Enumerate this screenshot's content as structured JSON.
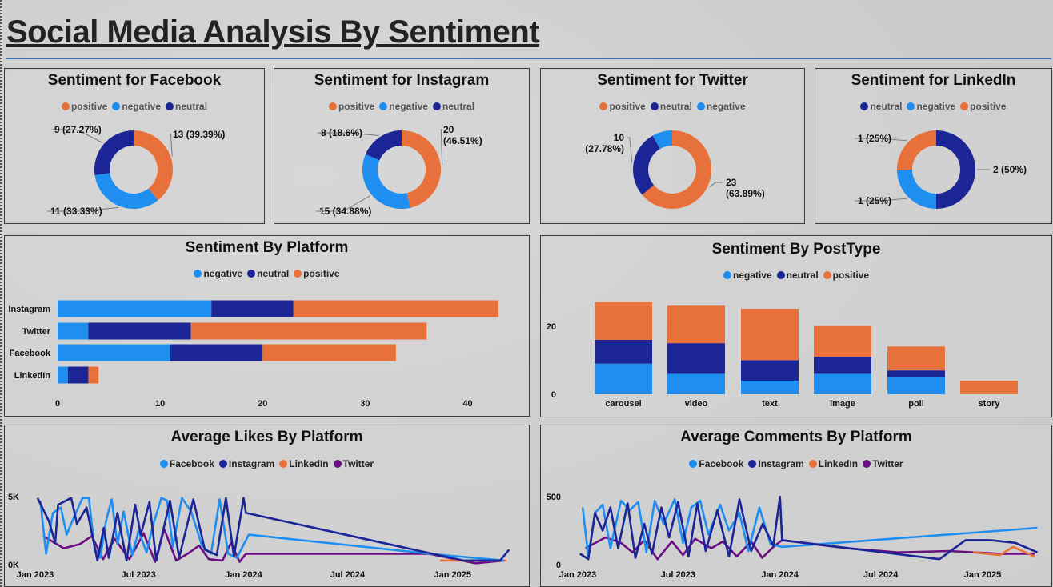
{
  "title": "Social Media Analysis By Sentiment",
  "colors": {
    "positive": "#e8703a",
    "negative": "#1e8ef0",
    "neutral": "#1b2596",
    "twitter_line": "#6a0f82"
  },
  "donuts": [
    {
      "title": "Sentiment for Facebook",
      "legend": [
        "positive",
        "negative",
        "neutral"
      ],
      "slices": [
        {
          "name": "positive",
          "value": 13,
          "label": "13 (39.39%)",
          "color": "#e8703a"
        },
        {
          "name": "negative",
          "value": 11,
          "label": "11 (33.33%)",
          "color": "#1e8ef0"
        },
        {
          "name": "neutral",
          "value": 9,
          "label": "9 (27.27%)",
          "color": "#1b2596"
        }
      ]
    },
    {
      "title": "Sentiment for Instagram",
      "legend": [
        "positive",
        "negative",
        "neutral"
      ],
      "slices": [
        {
          "name": "positive",
          "value": 20,
          "label_lines": [
            "20",
            "(46.51%)"
          ],
          "color": "#e8703a"
        },
        {
          "name": "negative",
          "value": 15,
          "label": "15 (34.88%)",
          "color": "#1e8ef0"
        },
        {
          "name": "neutral",
          "value": 8,
          "label": "8 (18.6%)",
          "color": "#1b2596"
        }
      ]
    },
    {
      "title": "Sentiment for Twitter",
      "legend": [
        "positive",
        "neutral",
        "negative"
      ],
      "slices": [
        {
          "name": "positive",
          "value": 23,
          "label_lines": [
            "23",
            "(63.89%)"
          ],
          "color": "#e8703a"
        },
        {
          "name": "neutral",
          "value": 10,
          "label_lines": [
            "10",
            "(27.78%)"
          ],
          "color": "#1b2596"
        },
        {
          "name": "negative",
          "value": 3,
          "label": "",
          "color": "#1e8ef0"
        }
      ]
    },
    {
      "title": "Sentiment for LinkedIn",
      "legend": [
        "neutral",
        "negative",
        "positive"
      ],
      "slices": [
        {
          "name": "neutral",
          "value": 2,
          "label": "2 (50%)",
          "color": "#1b2596"
        },
        {
          "name": "negative",
          "value": 1,
          "label": "1 (25%)",
          "color": "#1e8ef0"
        },
        {
          "name": "positive",
          "value": 1,
          "label": "1 (25%)",
          "color": "#e8703a"
        }
      ]
    }
  ],
  "chart_data": [
    {
      "type": "bar",
      "orientation": "horizontal",
      "stacked": true,
      "title": "Sentiment By Platform",
      "legend": [
        "negative",
        "neutral",
        "positive"
      ],
      "categories": [
        "Instagram",
        "Twitter",
        "Facebook",
        "LinkedIn"
      ],
      "series": [
        {
          "name": "negative",
          "values": [
            15,
            3,
            11,
            1
          ]
        },
        {
          "name": "neutral",
          "values": [
            8,
            10,
            9,
            2
          ]
        },
        {
          "name": "positive",
          "values": [
            20,
            23,
            13,
            1
          ]
        }
      ],
      "xlim": [
        0,
        43
      ],
      "xticks": [
        0,
        10,
        20,
        30,
        40
      ]
    },
    {
      "type": "bar",
      "orientation": "vertical",
      "stacked": true,
      "title": "Sentiment By PostType",
      "legend": [
        "negative",
        "neutral",
        "positive"
      ],
      "categories": [
        "carousel",
        "video",
        "text",
        "image",
        "poll",
        "story"
      ],
      "series": [
        {
          "name": "negative",
          "values": [
            9,
            6,
            4,
            6,
            5,
            0
          ]
        },
        {
          "name": "neutral",
          "values": [
            7,
            9,
            6,
            5,
            2,
            0
          ]
        },
        {
          "name": "positive",
          "values": [
            11,
            11,
            15,
            9,
            7,
            4
          ]
        }
      ],
      "ylim": [
        0,
        27
      ],
      "yticks": [
        0,
        20
      ]
    },
    {
      "type": "line",
      "title": "Average Likes By Platform",
      "legend": [
        "Facebook",
        "Instagram",
        "LinkedIn",
        "Twitter"
      ],
      "xticks": [
        "Jan 2023",
        "Jul 2023",
        "Jan 2024",
        "Jul 2024",
        "Jan 2025"
      ],
      "xlim": [
        "2023-01-01",
        "2025-04-15"
      ],
      "yticks": [
        "0K",
        "5K"
      ],
      "ylim": [
        0,
        5000
      ],
      "series": [
        {
          "name": "Facebook",
          "points": [
            [
              "2023-01-10",
              4700
            ],
            [
              "2023-01-20",
              800
            ],
            [
              "2023-02-01",
              3800
            ],
            [
              "2023-02-15",
              4200
            ],
            [
              "2023-02-25",
              2200
            ],
            [
              "2023-03-10",
              3500
            ],
            [
              "2023-03-25",
              4900
            ],
            [
              "2023-04-05",
              4900
            ],
            [
              "2023-04-15",
              1200
            ],
            [
              "2023-04-25",
              500
            ],
            [
              "2023-05-05",
              3200
            ],
            [
              "2023-05-15",
              4800
            ],
            [
              "2023-05-25",
              1500
            ],
            [
              "2023-06-05",
              3900
            ],
            [
              "2023-06-20",
              700
            ],
            [
              "2023-07-01",
              2500
            ],
            [
              "2023-07-15",
              900
            ],
            [
              "2023-07-25",
              2700
            ],
            [
              "2023-08-10",
              4900
            ],
            [
              "2023-08-20",
              4700
            ],
            [
              "2023-08-30",
              1300
            ],
            [
              "2023-09-15",
              4900
            ],
            [
              "2023-10-01",
              3900
            ],
            [
              "2023-10-20",
              1400
            ],
            [
              "2023-11-05",
              800
            ],
            [
              "2023-11-20",
              4800
            ],
            [
              "2023-12-05",
              800
            ],
            [
              "2023-12-20",
              500
            ],
            [
              "2024-01-10",
              2200
            ],
            [
              "2024-12-15",
              700
            ],
            [
              "2025-04-01",
              300
            ]
          ]
        },
        {
          "name": "Instagram",
          "points": [
            [
              "2023-01-05",
              4900
            ],
            [
              "2023-01-25",
              3200
            ],
            [
              "2023-02-05",
              1600
            ],
            [
              "2023-02-10",
              4400
            ],
            [
              "2023-03-05",
              4900
            ],
            [
              "2023-03-15",
              3000
            ],
            [
              "2023-04-01",
              4200
            ],
            [
              "2023-04-20",
              300
            ],
            [
              "2023-05-01",
              2700
            ],
            [
              "2023-05-10",
              500
            ],
            [
              "2023-05-25",
              3800
            ],
            [
              "2023-06-10",
              300
            ],
            [
              "2023-06-25",
              4400
            ],
            [
              "2023-07-05",
              2200
            ],
            [
              "2023-07-20",
              4600
            ],
            [
              "2023-08-01",
              300
            ],
            [
              "2023-08-25",
              4700
            ],
            [
              "2023-09-10",
              500
            ],
            [
              "2023-10-05",
              4800
            ],
            [
              "2023-10-25",
              1100
            ],
            [
              "2023-11-15",
              700
            ],
            [
              "2023-12-01",
              4900
            ],
            [
              "2023-12-15",
              600
            ],
            [
              "2024-01-01",
              4900
            ],
            [
              "2024-01-05",
              3800
            ],
            [
              "2025-01-20",
              300
            ],
            [
              "2025-03-25",
              300
            ],
            [
              "2025-04-10",
              1100
            ]
          ]
        },
        {
          "name": "LinkedIn",
          "points": [
            [
              "2024-12-10",
              300
            ],
            [
              "2025-04-05",
              300
            ]
          ]
        },
        {
          "name": "Twitter",
          "points": [
            [
              "2023-01-15",
              2100
            ],
            [
              "2023-02-20",
              1200
            ],
            [
              "2023-03-20",
              1500
            ],
            [
              "2023-04-10",
              2100
            ],
            [
              "2023-04-30",
              400
            ],
            [
              "2023-05-20",
              1900
            ],
            [
              "2023-06-15",
              400
            ],
            [
              "2023-07-10",
              2300
            ],
            [
              "2023-07-30",
              200
            ],
            [
              "2023-08-15",
              2600
            ],
            [
              "2023-09-05",
              300
            ],
            [
              "2023-09-25",
              800
            ],
            [
              "2023-10-15",
              1400
            ],
            [
              "2023-11-01",
              400
            ],
            [
              "2023-11-25",
              300
            ],
            [
              "2023-12-10",
              1600
            ],
            [
              "2023-12-25",
              200
            ],
            [
              "2024-01-05",
              800
            ],
            [
              "2024-11-20",
              800
            ],
            [
              "2025-02-10",
              100
            ],
            [
              "2025-04-01",
              300
            ]
          ]
        }
      ]
    },
    {
      "type": "line",
      "title": "Average Comments By Platform",
      "legend": [
        "Facebook",
        "Instagram",
        "LinkedIn",
        "Twitter"
      ],
      "xticks": [
        "Jan 2023",
        "Jul 2023",
        "Jan 2024",
        "Jul 2024",
        "Jan 2025"
      ],
      "xlim": [
        "2023-01-01",
        "2025-04-15"
      ],
      "yticks": [
        "0",
        "500"
      ],
      "ylim": [
        0,
        500
      ],
      "series": [
        {
          "name": "Facebook",
          "points": [
            [
              "2023-01-10",
              420
            ],
            [
              "2023-01-20",
              60
            ],
            [
              "2023-02-01",
              380
            ],
            [
              "2023-02-15",
              440
            ],
            [
              "2023-03-01",
              120
            ],
            [
              "2023-03-20",
              470
            ],
            [
              "2023-04-05",
              400
            ],
            [
              "2023-04-20",
              460
            ],
            [
              "2023-05-05",
              90
            ],
            [
              "2023-05-20",
              470
            ],
            [
              "2023-06-05",
              300
            ],
            [
              "2023-06-25",
              480
            ],
            [
              "2023-07-10",
              160
            ],
            [
              "2023-07-25",
              420
            ],
            [
              "2023-08-10",
              470
            ],
            [
              "2023-08-25",
              220
            ],
            [
              "2023-09-15",
              440
            ],
            [
              "2023-10-01",
              250
            ],
            [
              "2023-10-20",
              380
            ],
            [
              "2023-11-05",
              100
            ],
            [
              "2023-11-25",
              420
            ],
            [
              "2023-12-15",
              150
            ],
            [
              "2024-01-05",
              130
            ],
            [
              "2025-04-10",
              270
            ]
          ]
        },
        {
          "name": "Instagram",
          "points": [
            [
              "2023-01-05",
              80
            ],
            [
              "2023-01-20",
              40
            ],
            [
              "2023-02-01",
              380
            ],
            [
              "2023-02-15",
              250
            ],
            [
              "2023-03-01",
              420
            ],
            [
              "2023-03-15",
              120
            ],
            [
              "2023-04-01",
              450
            ],
            [
              "2023-04-15",
              50
            ],
            [
              "2023-05-01",
              300
            ],
            [
              "2023-05-15",
              80
            ],
            [
              "2023-06-01",
              420
            ],
            [
              "2023-06-15",
              200
            ],
            [
              "2023-07-01",
              460
            ],
            [
              "2023-07-20",
              60
            ],
            [
              "2023-08-05",
              450
            ],
            [
              "2023-08-20",
              100
            ],
            [
              "2023-09-10",
              400
            ],
            [
              "2023-10-01",
              60
            ],
            [
              "2023-10-20",
              480
            ],
            [
              "2023-11-10",
              100
            ],
            [
              "2023-12-01",
              300
            ],
            [
              "2023-12-20",
              140
            ],
            [
              "2024-01-01",
              500
            ],
            [
              "2024-01-05",
              180
            ],
            [
              "2024-10-15",
              40
            ],
            [
              "2024-12-01",
              180
            ],
            [
              "2025-01-15",
              180
            ],
            [
              "2025-03-01",
              160
            ],
            [
              "2025-04-10",
              90
            ]
          ]
        },
        {
          "name": "LinkedIn",
          "points": [
            [
              "2024-12-15",
              90
            ],
            [
              "2025-02-01",
              70
            ],
            [
              "2025-02-25",
              130
            ],
            [
              "2025-04-05",
              60
            ]
          ]
        },
        {
          "name": "Twitter",
          "points": [
            [
              "2023-01-15",
              120
            ],
            [
              "2023-02-20",
              200
            ],
            [
              "2023-03-20",
              160
            ],
            [
              "2023-04-10",
              90
            ],
            [
              "2023-05-01",
              180
            ],
            [
              "2023-05-25",
              40
            ],
            [
              "2023-06-20",
              170
            ],
            [
              "2023-07-10",
              70
            ],
            [
              "2023-08-01",
              190
            ],
            [
              "2023-08-30",
              120
            ],
            [
              "2023-09-20",
              170
            ],
            [
              "2023-10-15",
              60
            ],
            [
              "2023-11-10",
              170
            ],
            [
              "2023-11-30",
              50
            ],
            [
              "2023-12-20",
              130
            ],
            [
              "2024-01-05",
              180
            ],
            [
              "2024-05-01",
              120
            ],
            [
              "2024-08-01",
              90
            ],
            [
              "2024-11-01",
              100
            ],
            [
              "2025-02-01",
              80
            ],
            [
              "2025-04-05",
              80
            ]
          ]
        }
      ]
    }
  ]
}
